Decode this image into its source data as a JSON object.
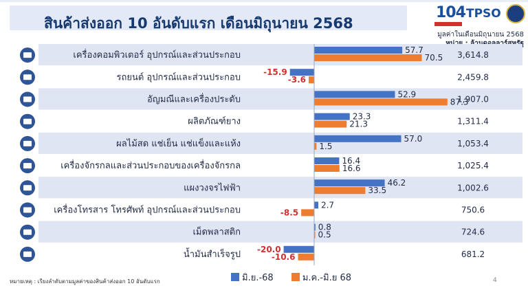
{
  "header": {
    "title": "สินค้าส่งออก 10 อันดับแรก เดือนมิถุนายน 2568",
    "value_note": "มูลค่าในเดือนมิถุนายน 2568",
    "unit_note": "หน่วย : ล้านดอลลาร์สหรัฐ"
  },
  "logos": {
    "main": "104",
    "tpso": "TPSO"
  },
  "footer": {
    "note": "หมายเหตุ : เรียงลำดับตามมูลค่าของสินค้าส่งออก 10 อันดับแรก",
    "page": "4"
  },
  "colors": {
    "series1": "#4472c4",
    "series2": "#ed7d31",
    "negative_label": "#d32f2f",
    "band": "#dfe5f3"
  },
  "chart_data": {
    "type": "bar",
    "orientation": "horizontal",
    "categories": [
      "เครื่องคอมพิวเตอร์ อุปกรณ์และส่วนประกอบ",
      "รถยนต์ อุปกรณ์และส่วนประกอบ",
      "อัญมณีและเครื่องประดับ",
      "ผลิตภัณฑ์ยาง",
      "ผลไม้สด แช่เย็น แช่แข็งและแห้ง",
      "เครื่องจักรกลและส่วนประกอบของเครื่องจักรกล",
      "แผงวงจรไฟฟ้า",
      "เครื่องโทรสาร โทรศัพท์ อุปกรณ์และส่วนประกอบ",
      "เม็ดพลาสติก",
      "น้ำมันสำเร็จรูป"
    ],
    "icons": [
      "computer-icon",
      "car-icon",
      "gem-icon",
      "tire-icon",
      "fruit-icon",
      "gear-icon",
      "circuit-icon",
      "phone-icon",
      "plastic-icon",
      "oil-icon"
    ],
    "series": [
      {
        "name": "มิ.ย.-68",
        "values": [
          57.7,
          -15.9,
          52.9,
          23.3,
          57.0,
          16.4,
          46.2,
          2.7,
          0.8,
          -20.0
        ],
        "labels": [
          "57.7",
          "-15.9",
          "52.9",
          "23.3",
          "57.0",
          "16.4",
          "46.2",
          "2.7",
          "0.8",
          "-20.0"
        ]
      },
      {
        "name": "ม.ค.-มิ.ย 68",
        "values": [
          70.5,
          -3.6,
          87.3,
          21.3,
          1.5,
          16.6,
          33.5,
          -8.5,
          0.5,
          -10.6
        ],
        "labels": [
          "70.5",
          "-3.6",
          "87.3",
          "21.3",
          "1.5",
          "16.6",
          "33.5",
          "-8.5",
          "0.5",
          "-10.6"
        ]
      }
    ],
    "export_values": [
      3614.8,
      2459.8,
      1907.0,
      1311.4,
      1053.4,
      1025.4,
      1002.6,
      750.6,
      724.6,
      681.2
    ],
    "export_labels": [
      "3,614.8",
      "2,459.8",
      "1,907.0",
      "1,311.4",
      "1,053.4",
      "1,025.4",
      "1,002.6",
      "750.6",
      "724.6",
      "681.2"
    ],
    "legend_position": "bottom",
    "grid": false
  }
}
